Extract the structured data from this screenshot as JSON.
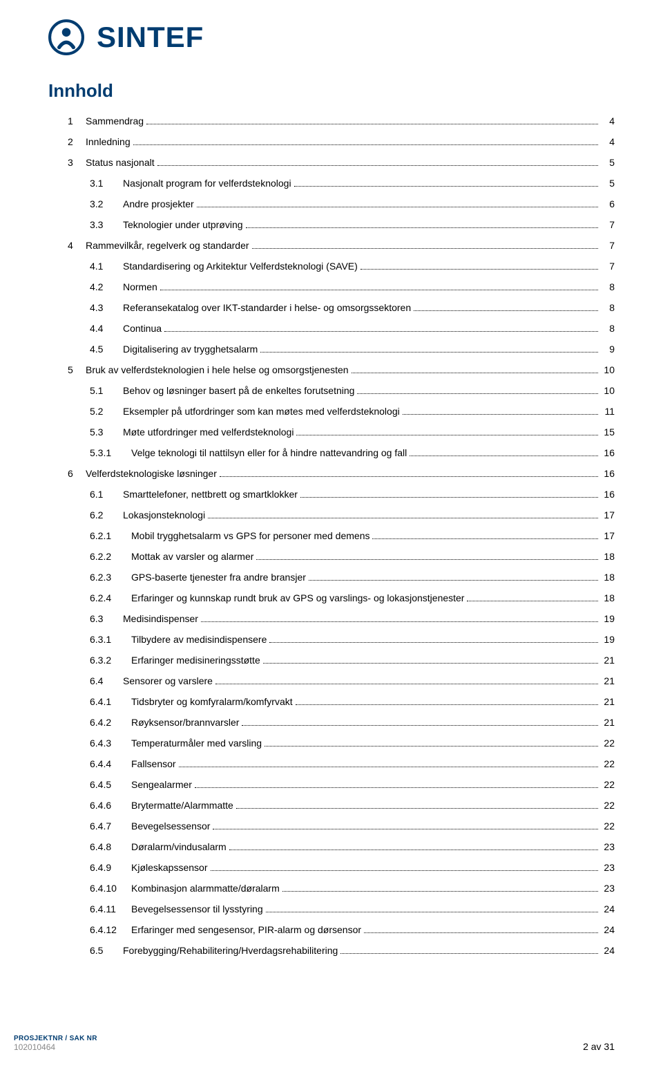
{
  "brand": {
    "name": "SINTEF",
    "color": "#003c70"
  },
  "heading": "Innhold",
  "footer": {
    "label": "PROSJEKTNR / SAK NR",
    "value": "102010464",
    "page_text": "2 av 31"
  },
  "toc": [
    {
      "level": 1,
      "num": "1",
      "label": "Sammendrag",
      "page": "4"
    },
    {
      "level": 1,
      "num": "2",
      "label": "Innledning",
      "page": "4"
    },
    {
      "level": 1,
      "num": "3",
      "label": "Status nasjonalt",
      "page": "5"
    },
    {
      "level": 2,
      "num": "3.1",
      "label": "Nasjonalt program for velferdsteknologi",
      "page": "5"
    },
    {
      "level": 2,
      "num": "3.2",
      "label": "Andre prosjekter",
      "page": "6"
    },
    {
      "level": 2,
      "num": "3.3",
      "label": "Teknologier under utprøving",
      "page": "7"
    },
    {
      "level": 1,
      "num": "4",
      "label": "Rammevilkår, regelverk og standarder",
      "page": "7"
    },
    {
      "level": 2,
      "num": "4.1",
      "label": "Standardisering og Arkitektur Velferdsteknologi (SAVE)",
      "page": "7"
    },
    {
      "level": 2,
      "num": "4.2",
      "label": "Normen",
      "page": "8"
    },
    {
      "level": 2,
      "num": "4.3",
      "label": "Referansekatalog over IKT-standarder i helse- og omsorgssektoren",
      "page": "8"
    },
    {
      "level": 2,
      "num": "4.4",
      "label": "Continua",
      "page": "8"
    },
    {
      "level": 2,
      "num": "4.5",
      "label": "Digitalisering av trygghetsalarm",
      "page": "9"
    },
    {
      "level": 1,
      "num": "5",
      "label": "Bruk av velferdsteknologien i hele helse og omsorgstjenesten",
      "page": "10"
    },
    {
      "level": 2,
      "num": "5.1",
      "label": "Behov og løsninger basert på de enkeltes forutsetning",
      "page": "10"
    },
    {
      "level": 2,
      "num": "5.2",
      "label": "Eksempler på utfordringer som kan møtes med velferdsteknologi",
      "page": "11"
    },
    {
      "level": 2,
      "num": "5.3",
      "label": "Møte utfordringer med velferdsteknologi",
      "page": "15"
    },
    {
      "level": 3,
      "num": "5.3.1",
      "label": "Velge teknologi til nattilsyn eller for å hindre nattevandring og fall",
      "page": "16"
    },
    {
      "level": 1,
      "num": "6",
      "label": "Velferdsteknologiske løsninger",
      "page": "16"
    },
    {
      "level": 2,
      "num": "6.1",
      "label": "Smarttelefoner, nettbrett og smartklokker",
      "page": "16"
    },
    {
      "level": 2,
      "num": "6.2",
      "label": "Lokasjonsteknologi",
      "page": "17"
    },
    {
      "level": 3,
      "num": "6.2.1",
      "label": "Mobil trygghetsalarm vs GPS for personer med demens",
      "page": "17"
    },
    {
      "level": 3,
      "num": "6.2.2",
      "label": "Mottak av varsler og alarmer",
      "page": "18"
    },
    {
      "level": 3,
      "num": "6.2.3",
      "label": "GPS-baserte tjenester fra andre bransjer",
      "page": "18"
    },
    {
      "level": 3,
      "num": "6.2.4",
      "label": "Erfaringer og kunnskap rundt bruk av GPS og varslings- og lokasjonstjenester",
      "page": "18"
    },
    {
      "level": 2,
      "num": "6.3",
      "label": "Medisindispenser",
      "page": "19"
    },
    {
      "level": 3,
      "num": "6.3.1",
      "label": "Tilbydere av medisindispensere",
      "page": "19"
    },
    {
      "level": 3,
      "num": "6.3.2",
      "label": "Erfaringer medisineringsstøtte",
      "page": "21"
    },
    {
      "level": 2,
      "num": "6.4",
      "label": "Sensorer og varslere",
      "page": "21"
    },
    {
      "level": 3,
      "num": "6.4.1",
      "label": "Tidsbryter og komfyralarm/komfyrvakt",
      "page": "21"
    },
    {
      "level": 3,
      "num": "6.4.2",
      "label": "Røyksensor/brannvarsler",
      "page": "21"
    },
    {
      "level": 3,
      "num": "6.4.3",
      "label": "Temperaturmåler med varsling",
      "page": "22"
    },
    {
      "level": 3,
      "num": "6.4.4",
      "label": "Fallsensor",
      "page": "22"
    },
    {
      "level": 3,
      "num": "6.4.5",
      "label": "Sengealarmer",
      "page": "22"
    },
    {
      "level": 3,
      "num": "6.4.6",
      "label": "Brytermatte/Alarmmatte",
      "page": "22"
    },
    {
      "level": 3,
      "num": "6.4.7",
      "label": "Bevegelsessensor",
      "page": "22"
    },
    {
      "level": 3,
      "num": "6.4.8",
      "label": "Døralarm/vindusalarm",
      "page": "23"
    },
    {
      "level": 3,
      "num": "6.4.9",
      "label": "Kjøleskapssensor",
      "page": "23"
    },
    {
      "level": 3,
      "num": "6.4.10",
      "label": "Kombinasjon alarmmatte/døralarm",
      "page": "23"
    },
    {
      "level": 3,
      "num": "6.4.11",
      "label": "Bevegelsessensor til lysstyring",
      "page": "24"
    },
    {
      "level": 3,
      "num": "6.4.12",
      "label": "Erfaringer med sengesensor, PIR-alarm og dørsensor",
      "page": "24"
    },
    {
      "level": 2,
      "num": "6.5",
      "label": "Forebygging/Rehabilitering/Hverdagsrehabilitering",
      "page": "24"
    }
  ]
}
